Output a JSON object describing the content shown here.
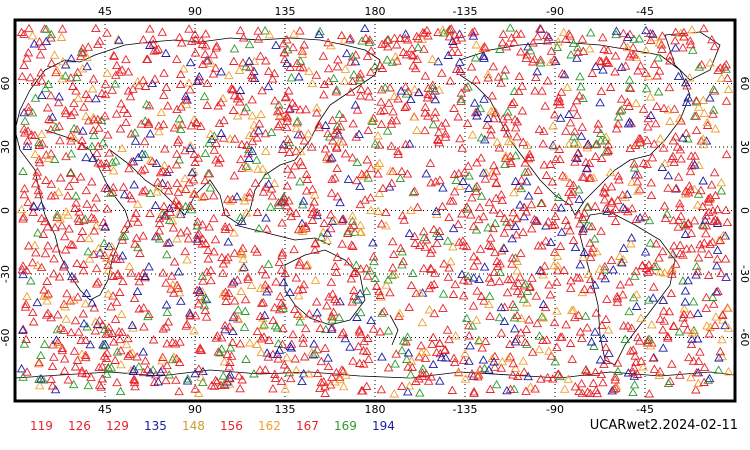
{
  "caption": "UCARwet2.2024-02-11",
  "x_ticks": [
    "45",
    "90",
    "135",
    "180",
    "-135",
    "-90",
    "-45"
  ],
  "y_ticks_left": [
    "60",
    "30",
    "0",
    "-30",
    "-60"
  ],
  "y_ticks_right": [
    "60",
    "30",
    "0",
    "-30",
    "-60"
  ],
  "legend": [
    {
      "label": "119",
      "color": "#e8232a"
    },
    {
      "label": "126",
      "color": "#e8232a"
    },
    {
      "label": "129",
      "color": "#e8232a"
    },
    {
      "label": "135",
      "color": "#1c1ca8"
    },
    {
      "label": "148",
      "color": "#c9a030"
    },
    {
      "label": "156",
      "color": "#e8232a"
    },
    {
      "label": "162",
      "color": "#f0a032"
    },
    {
      "label": "167",
      "color": "#e8232a"
    },
    {
      "label": "169",
      "color": "#2e9a2e"
    },
    {
      "label": "194",
      "color": "#1c1ca8"
    }
  ],
  "marker_colors": [
    "#e8232a",
    "#e8232a",
    "#e8232a",
    "#e8232a",
    "#2e9a2e",
    "#1c1ca8",
    "#f0a032",
    "#e8232a"
  ]
}
